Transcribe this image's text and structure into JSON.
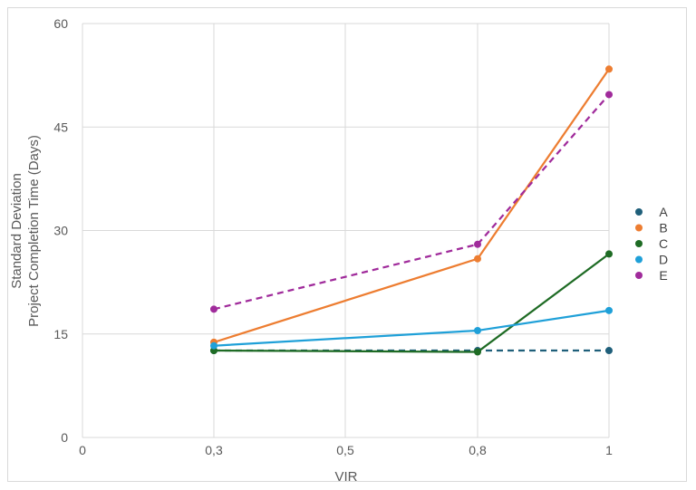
{
  "chart_data": {
    "type": "line",
    "xlabel": "VIR",
    "ylabel_lines": [
      "Standard Deviation",
      "Project  Completion Time (Days)"
    ],
    "x_ticks": [
      "0",
      "0,3",
      "0,5",
      "0,8",
      "1"
    ],
    "y_ticks": [
      "0",
      "15",
      "30",
      "45",
      "60"
    ],
    "xlim": [
      0,
      1
    ],
    "ylim": [
      0,
      60
    ],
    "grid": true,
    "legend_position": "right",
    "x": [
      0.3,
      0.8,
      1
    ],
    "series": [
      {
        "name": "A",
        "values": [
          12.6,
          12.6,
          12.6
        ],
        "color": "#1f5f7a",
        "dashed": true
      },
      {
        "name": "B",
        "values": [
          13.8,
          25.9,
          53.4
        ],
        "color": "#ed7d31",
        "dashed": false
      },
      {
        "name": "C",
        "values": [
          12.6,
          12.4,
          26.6
        ],
        "color": "#1e6b24",
        "dashed": false
      },
      {
        "name": "D",
        "values": [
          13.3,
          15.5,
          18.4
        ],
        "color": "#1fa0d8",
        "dashed": false
      },
      {
        "name": "E",
        "values": [
          18.6,
          28.0,
          49.7
        ],
        "color": "#a02b9b",
        "dashed": true
      }
    ]
  }
}
